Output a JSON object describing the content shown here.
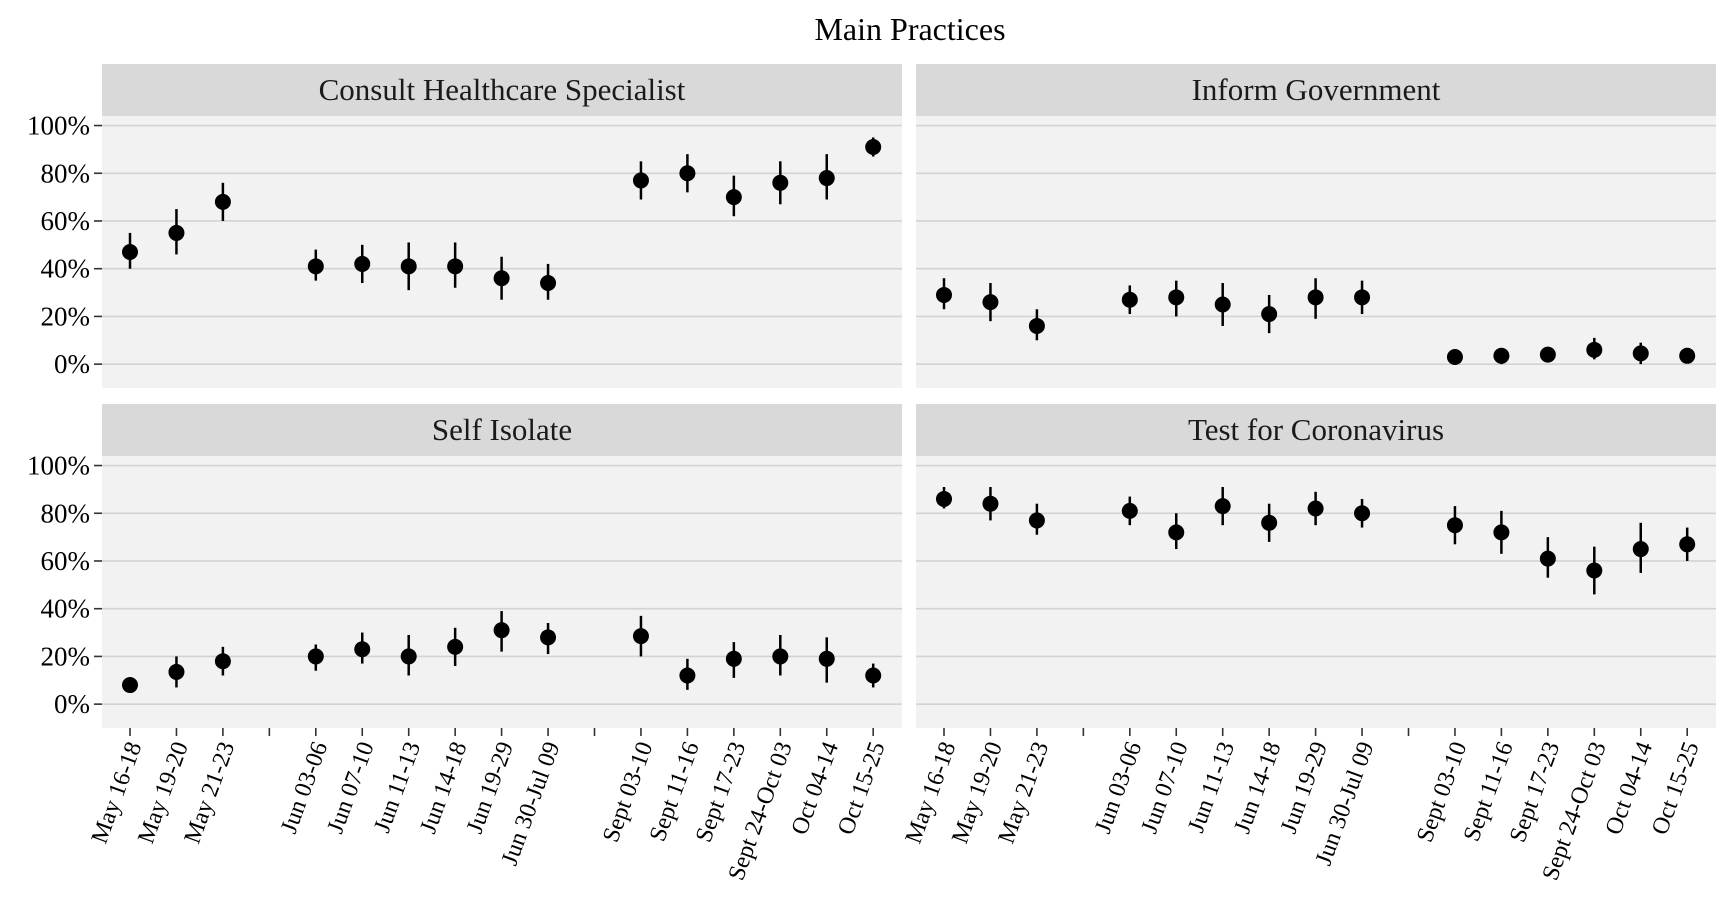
{
  "chart_data": {
    "type": "scatter",
    "title": "Main Practices",
    "xlabel": "",
    "ylabel": "",
    "ylim": [
      -0.1,
      1.04
    ],
    "y_ticks": [
      0,
      0.2,
      0.4,
      0.6,
      0.8,
      1.0
    ],
    "y_tick_labels": [
      "0%",
      "20%",
      "40%",
      "60%",
      "80%",
      "100%"
    ],
    "grid": true,
    "facets": [
      "Consult Healthcare Specialist",
      "Inform Government",
      "Self Isolate",
      "Test for Coronavirus"
    ],
    "x_slots": [
      "May 16-18",
      "May 19-20",
      "May 21-23",
      "",
      "Jun 03-06",
      "Jun 07-10",
      "Jun 11-13",
      "Jun 14-18",
      "Jun 19-29",
      "Jun 30-Jul 09",
      "",
      "Sept 03-10",
      "Sept 11-16",
      "Sept 17-23",
      "Sept 24-Oct 03",
      "Oct 04-14",
      "Oct 15-25"
    ],
    "series": [
      {
        "facet": "Consult Healthcare Specialist",
        "points": [
          {
            "x": "May 16-18",
            "y": 0.47,
            "lo": 0.4,
            "hi": 0.55
          },
          {
            "x": "May 19-20",
            "y": 0.55,
            "lo": 0.46,
            "hi": 0.65
          },
          {
            "x": "May 21-23",
            "y": 0.68,
            "lo": 0.6,
            "hi": 0.76
          },
          {
            "x": "Jun 03-06",
            "y": 0.41,
            "lo": 0.35,
            "hi": 0.48
          },
          {
            "x": "Jun 07-10",
            "y": 0.42,
            "lo": 0.34,
            "hi": 0.5
          },
          {
            "x": "Jun 11-13",
            "y": 0.41,
            "lo": 0.31,
            "hi": 0.51
          },
          {
            "x": "Jun 14-18",
            "y": 0.41,
            "lo": 0.32,
            "hi": 0.51
          },
          {
            "x": "Jun 19-29",
            "y": 0.36,
            "lo": 0.27,
            "hi": 0.45
          },
          {
            "x": "Jun 30-Jul 09",
            "y": 0.34,
            "lo": 0.27,
            "hi": 0.42
          },
          {
            "x": "Sept 03-10",
            "y": 0.77,
            "lo": 0.69,
            "hi": 0.85
          },
          {
            "x": "Sept 11-16",
            "y": 0.8,
            "lo": 0.72,
            "hi": 0.88
          },
          {
            "x": "Sept 17-23",
            "y": 0.7,
            "lo": 0.62,
            "hi": 0.79
          },
          {
            "x": "Sept 24-Oct 03",
            "y": 0.76,
            "lo": 0.67,
            "hi": 0.85
          },
          {
            "x": "Oct 04-14",
            "y": 0.78,
            "lo": 0.69,
            "hi": 0.88
          },
          {
            "x": "Oct 15-25",
            "y": 0.91,
            "lo": 0.87,
            "hi": 0.95
          }
        ]
      },
      {
        "facet": "Inform Government",
        "points": [
          {
            "x": "May 16-18",
            "y": 0.29,
            "lo": 0.23,
            "hi": 0.36
          },
          {
            "x": "May 19-20",
            "y": 0.26,
            "lo": 0.18,
            "hi": 0.34
          },
          {
            "x": "May 21-23",
            "y": 0.16,
            "lo": 0.1,
            "hi": 0.23
          },
          {
            "x": "Jun 03-06",
            "y": 0.27,
            "lo": 0.21,
            "hi": 0.33
          },
          {
            "x": "Jun 07-10",
            "y": 0.28,
            "lo": 0.2,
            "hi": 0.35
          },
          {
            "x": "Jun 11-13",
            "y": 0.25,
            "lo": 0.16,
            "hi": 0.34
          },
          {
            "x": "Jun 14-18",
            "y": 0.21,
            "lo": 0.13,
            "hi": 0.29
          },
          {
            "x": "Jun 19-29",
            "y": 0.28,
            "lo": 0.19,
            "hi": 0.36
          },
          {
            "x": "Jun 30-Jul 09",
            "y": 0.28,
            "lo": 0.21,
            "hi": 0.35
          },
          {
            "x": "Sept 03-10",
            "y": 0.03,
            "lo": 0.0,
            "hi": 0.05
          },
          {
            "x": "Sept 11-16",
            "y": 0.035,
            "lo": 0.0,
            "hi": 0.06
          },
          {
            "x": "Sept 17-23",
            "y": 0.04,
            "lo": 0.01,
            "hi": 0.07
          },
          {
            "x": "Sept 24-Oct 03",
            "y": 0.06,
            "lo": 0.02,
            "hi": 0.11
          },
          {
            "x": "Oct 04-14",
            "y": 0.045,
            "lo": 0.0,
            "hi": 0.09
          },
          {
            "x": "Oct 15-25",
            "y": 0.035,
            "lo": 0.01,
            "hi": 0.06
          }
        ]
      },
      {
        "facet": "Self Isolate",
        "points": [
          {
            "x": "May 16-18",
            "y": 0.08,
            "lo": 0.05,
            "hi": 0.11
          },
          {
            "x": "May 19-20",
            "y": 0.135,
            "lo": 0.07,
            "hi": 0.2
          },
          {
            "x": "May 21-23",
            "y": 0.18,
            "lo": 0.12,
            "hi": 0.24
          },
          {
            "x": "Jun 03-06",
            "y": 0.2,
            "lo": 0.14,
            "hi": 0.25
          },
          {
            "x": "Jun 07-10",
            "y": 0.23,
            "lo": 0.17,
            "hi": 0.3
          },
          {
            "x": "Jun 11-13",
            "y": 0.2,
            "lo": 0.12,
            "hi": 0.29
          },
          {
            "x": "Jun 14-18",
            "y": 0.24,
            "lo": 0.16,
            "hi": 0.32
          },
          {
            "x": "Jun 19-29",
            "y": 0.31,
            "lo": 0.22,
            "hi": 0.39
          },
          {
            "x": "Jun 30-Jul 09",
            "y": 0.28,
            "lo": 0.21,
            "hi": 0.34
          },
          {
            "x": "Sept 03-10",
            "y": 0.285,
            "lo": 0.2,
            "hi": 0.37
          },
          {
            "x": "Sept 11-16",
            "y": 0.12,
            "lo": 0.06,
            "hi": 0.19
          },
          {
            "x": "Sept 17-23",
            "y": 0.19,
            "lo": 0.11,
            "hi": 0.26
          },
          {
            "x": "Sept 24-Oct 03",
            "y": 0.2,
            "lo": 0.12,
            "hi": 0.29
          },
          {
            "x": "Oct 04-14",
            "y": 0.19,
            "lo": 0.09,
            "hi": 0.28
          },
          {
            "x": "Oct 15-25",
            "y": 0.12,
            "lo": 0.07,
            "hi": 0.17
          }
        ]
      },
      {
        "facet": "Test for Coronavirus",
        "points": [
          {
            "x": "May 16-18",
            "y": 0.86,
            "lo": 0.82,
            "hi": 0.91
          },
          {
            "x": "May 19-20",
            "y": 0.84,
            "lo": 0.77,
            "hi": 0.91
          },
          {
            "x": "May 21-23",
            "y": 0.77,
            "lo": 0.71,
            "hi": 0.84
          },
          {
            "x": "Jun 03-06",
            "y": 0.81,
            "lo": 0.75,
            "hi": 0.87
          },
          {
            "x": "Jun 07-10",
            "y": 0.72,
            "lo": 0.65,
            "hi": 0.8
          },
          {
            "x": "Jun 11-13",
            "y": 0.83,
            "lo": 0.75,
            "hi": 0.91
          },
          {
            "x": "Jun 14-18",
            "y": 0.76,
            "lo": 0.68,
            "hi": 0.84
          },
          {
            "x": "Jun 19-29",
            "y": 0.82,
            "lo": 0.75,
            "hi": 0.89
          },
          {
            "x": "Jun 30-Jul 09",
            "y": 0.8,
            "lo": 0.74,
            "hi": 0.86
          },
          {
            "x": "Sept 03-10",
            "y": 0.75,
            "lo": 0.67,
            "hi": 0.83
          },
          {
            "x": "Sept 11-16",
            "y": 0.72,
            "lo": 0.63,
            "hi": 0.81
          },
          {
            "x": "Sept 17-23",
            "y": 0.61,
            "lo": 0.53,
            "hi": 0.7
          },
          {
            "x": "Sept 24-Oct 03",
            "y": 0.56,
            "lo": 0.46,
            "hi": 0.66
          },
          {
            "x": "Oct 04-14",
            "y": 0.65,
            "lo": 0.55,
            "hi": 0.76
          },
          {
            "x": "Oct 15-25",
            "y": 0.67,
            "lo": 0.6,
            "hi": 0.74
          }
        ]
      }
    ]
  }
}
